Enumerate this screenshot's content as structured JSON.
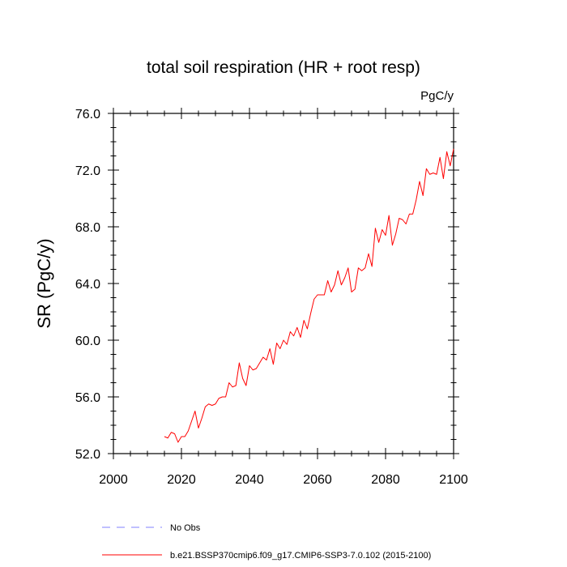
{
  "chart_data": {
    "type": "line",
    "title": "total soil respiration (HR + root resp)",
    "units": "PgC/y",
    "ylabel": "SR  (PgC/y)",
    "xlabel": "",
    "xlim": [
      2000,
      2100
    ],
    "ylim": [
      52.0,
      76.0
    ],
    "x_ticks": [
      2000,
      2020,
      2040,
      2060,
      2080,
      2100
    ],
    "x_tick_labels": [
      "2000",
      "2020",
      "2040",
      "2060",
      "2080",
      "2100"
    ],
    "y_ticks": [
      52.0,
      56.0,
      60.0,
      64.0,
      68.0,
      72.0,
      76.0
    ],
    "y_tick_labels": [
      "52.0",
      "56.0",
      "60.0",
      "64.0",
      "68.0",
      "72.0",
      "76.0"
    ],
    "grid": false,
    "legend_position": "bottom",
    "series": [
      {
        "name": "b.e21.BSSP370cmip6.f09_g17.CMIP6-SSP3-7.0.102 (2015-2100)",
        "color": "#ff0000",
        "dash": "solid",
        "x": [
          2015,
          2016,
          2017,
          2018,
          2019,
          2020,
          2021,
          2022,
          2023,
          2024,
          2025,
          2026,
          2027,
          2028,
          2029,
          2030,
          2031,
          2032,
          2033,
          2034,
          2035,
          2036,
          2037,
          2038,
          2039,
          2040,
          2041,
          2042,
          2043,
          2044,
          2045,
          2046,
          2047,
          2048,
          2049,
          2050,
          2051,
          2052,
          2053,
          2054,
          2055,
          2056,
          2057,
          2058,
          2059,
          2060,
          2061,
          2062,
          2063,
          2064,
          2065,
          2066,
          2067,
          2068,
          2069,
          2070,
          2071,
          2072,
          2073,
          2074,
          2075,
          2076,
          2077,
          2078,
          2079,
          2080,
          2081,
          2082,
          2083,
          2084,
          2085,
          2086,
          2087,
          2088,
          2089,
          2090,
          2091,
          2092,
          2093,
          2094,
          2095,
          2096,
          2097,
          2098,
          2099,
          2100
        ],
        "values": [
          53.2,
          53.1,
          53.5,
          53.4,
          52.8,
          53.2,
          53.2,
          53.6,
          54.3,
          55.0,
          53.8,
          54.5,
          55.3,
          55.5,
          55.4,
          55.5,
          55.9,
          56.0,
          56.0,
          57.0,
          56.7,
          56.8,
          58.4,
          57.3,
          56.8,
          58.2,
          57.9,
          58.0,
          58.4,
          58.8,
          58.6,
          59.4,
          58.3,
          59.8,
          59.4,
          60.0,
          59.7,
          60.6,
          60.3,
          60.9,
          60.2,
          61.4,
          60.8,
          61.9,
          62.9,
          63.2,
          63.2,
          63.2,
          64.2,
          63.4,
          63.9,
          64.9,
          63.9,
          64.4,
          65.1,
          63.4,
          63.6,
          65.1,
          64.9,
          65.1,
          66.1,
          65.2,
          67.9,
          66.9,
          67.8,
          67.4,
          68.8,
          66.7,
          67.5,
          68.6,
          68.5,
          68.2,
          68.9,
          68.9,
          69.9,
          71.2,
          70.2,
          72.1,
          71.7,
          71.8,
          71.7,
          72.9,
          71.4,
          73.3,
          72.3,
          73.5
        ]
      },
      {
        "name": "No Obs",
        "color": "#8080ff",
        "dash": "dashed",
        "x": [],
        "values": []
      }
    ]
  }
}
